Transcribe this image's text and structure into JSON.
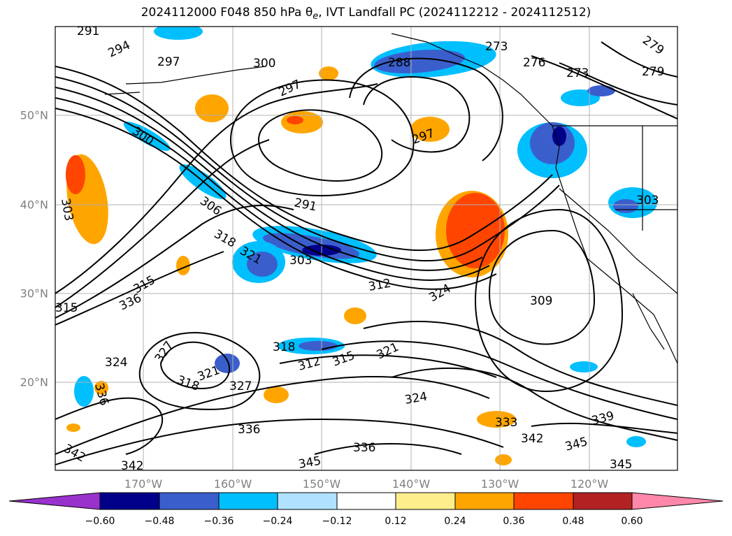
{
  "title": {
    "prefix": "2024112000 F048 850 hPa ",
    "theta": "θ",
    "theta_sub": "e",
    "suffix": ", IVT Landfall PC (2024112212 - 2024112512)"
  },
  "latitude_labels": [
    "50°N",
    "40°N",
    "30°N",
    "20°N"
  ],
  "longitude_labels": [
    "170°W",
    "160°W",
    "150°W",
    "140°W",
    "130°W",
    "120°W"
  ],
  "colorbar": {
    "tick_labels": [
      "−0.60",
      "−0.48",
      "−0.36",
      "−0.24",
      "−0.12",
      "0.12",
      "0.24",
      "0.36",
      "0.48",
      "0.60"
    ],
    "colors": [
      "#9932cc",
      "#00008b",
      "#3a5fcd",
      "#00bfff",
      "#b0e2ff",
      "#ffffff",
      "#ffee8c",
      "#ffa500",
      "#ff4500",
      "#b22222",
      "#ff88aa"
    ]
  },
  "contour_labels": [
    "291",
    "294",
    "297",
    "300",
    "288",
    "273",
    "276",
    "273",
    "279",
    "279",
    "297",
    "300",
    "291",
    "306",
    "318",
    "321",
    "303",
    "297",
    "303",
    "303",
    "312",
    "324",
    "309",
    "315",
    "336",
    "318",
    "312",
    "315",
    "321",
    "324",
    "327",
    "318",
    "327",
    "336",
    "336",
    "324",
    "333",
    "342",
    "345",
    "339",
    "345",
    "342",
    "345",
    "342",
    "336",
    "321",
    "315"
  ]
}
